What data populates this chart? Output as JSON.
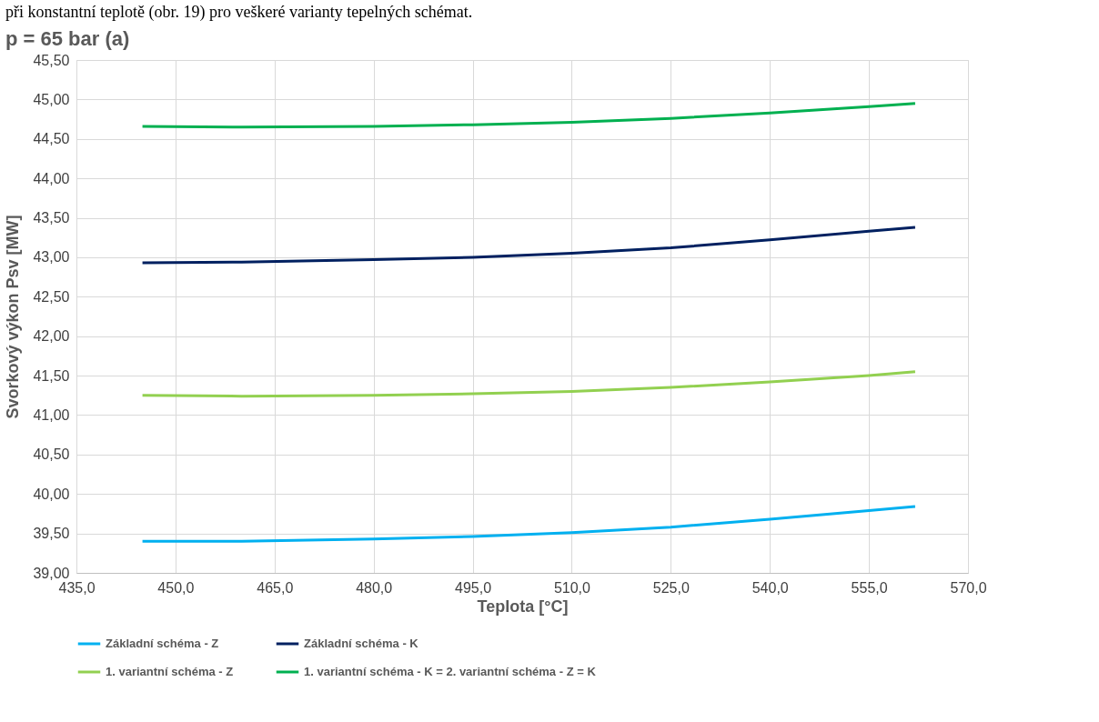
{
  "chart_data": {
    "type": "line",
    "title": "p = 65 bar (a)",
    "xlabel": "Teplota [°C]",
    "ylabel": "Svorkový výkon Psv [MW]",
    "annotations": [
      "při konstantní teplotě (obr. 19) pro veškeré varianty tepelných schémat."
    ],
    "x": [
      445,
      460,
      480,
      495,
      510,
      525,
      540,
      555,
      562
    ],
    "series": [
      {
        "name": "Základní schéma - Z",
        "color": "#00b0f0",
        "values": [
          39.4,
          39.4,
          39.43,
          39.46,
          39.51,
          39.58,
          39.68,
          39.79,
          39.84
        ]
      },
      {
        "name": "Základní schéma - K",
        "color": "#002060",
        "values": [
          42.93,
          42.94,
          42.97,
          43.0,
          43.05,
          43.12,
          43.22,
          43.33,
          43.38
        ]
      },
      {
        "name": "1. variantní schéma - Z",
        "color": "#92d050",
        "values": [
          41.25,
          41.24,
          41.25,
          41.27,
          41.3,
          41.35,
          41.42,
          41.5,
          41.55
        ]
      },
      {
        "name": "1. variantní schéma - K = 2. variantní schéma - Z = K",
        "color": "#00b050",
        "values": [
          44.66,
          44.65,
          44.66,
          44.68,
          44.71,
          44.76,
          44.83,
          44.91,
          44.95
        ]
      }
    ],
    "xlim": [
      435,
      570
    ],
    "xticks": [
      {
        "value": 435,
        "label": "435,0"
      },
      {
        "value": 450,
        "label": "450,0"
      },
      {
        "value": 465,
        "label": "465,0"
      },
      {
        "value": 480,
        "label": "480,0"
      },
      {
        "value": 495,
        "label": "495,0"
      },
      {
        "value": 510,
        "label": "510,0"
      },
      {
        "value": 525,
        "label": "525,0"
      },
      {
        "value": 540,
        "label": "540,0"
      },
      {
        "value": 555,
        "label": "555,0"
      },
      {
        "value": 570,
        "label": "570,0"
      }
    ],
    "ylim": [
      39,
      45.5
    ],
    "yticks": [
      {
        "value": 39,
        "label": "39,00"
      },
      {
        "value": 39.5,
        "label": "39,50"
      },
      {
        "value": 40,
        "label": "40,00"
      },
      {
        "value": 40.5,
        "label": "40,50"
      },
      {
        "value": 41,
        "label": "41,00"
      },
      {
        "value": 41.5,
        "label": "41,50"
      },
      {
        "value": 42,
        "label": "42,00"
      },
      {
        "value": 42.5,
        "label": "42,50"
      },
      {
        "value": 43,
        "label": "43,00"
      },
      {
        "value": 43.5,
        "label": "43,50"
      },
      {
        "value": 44,
        "label": "44,00"
      },
      {
        "value": 44.5,
        "label": "44,50"
      },
      {
        "value": 45,
        "label": "45,00"
      },
      {
        "value": 45.5,
        "label": "45,50"
      }
    ],
    "grid": true,
    "legend": "bottom",
    "marker": "none",
    "line_style": "solid"
  }
}
